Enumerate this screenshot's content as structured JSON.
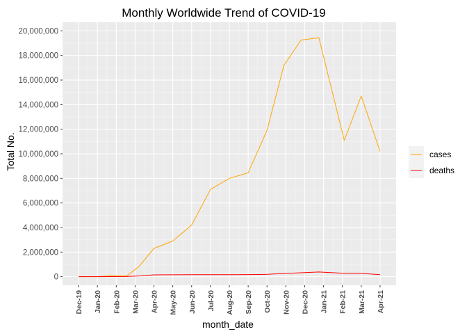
{
  "chart_data": {
    "type": "line",
    "title": "Monthly Worldwide Trend of COVID-19",
    "xlabel": "month_date",
    "ylabel": "Total No.",
    "categories": [
      "Dec-19",
      "Jan-20",
      "Feb-20",
      "Mar-20",
      "Apr-20",
      "May-20",
      "Jun-20",
      "Jul-20",
      "Aug-20",
      "Sep-20",
      "Oct-20",
      "Nov-20",
      "Dec-20",
      "Jan-21",
      "Feb-21",
      "Mar-21",
      "Apr-21"
    ],
    "x_offsets": [
      0,
      1,
      2,
      3,
      4,
      5,
      6,
      7,
      8,
      9,
      10,
      11,
      12,
      13,
      14,
      15,
      16
    ],
    "ylim": [
      -700000,
      20700000
    ],
    "yticks": [
      0,
      2000000,
      4000000,
      6000000,
      8000000,
      10000000,
      12000000,
      14000000,
      16000000,
      18000000,
      20000000
    ],
    "ytick_labels": [
      "0",
      "2,000,000",
      "4,000,000",
      "6,000,000",
      "8,000,000",
      "10,000,000",
      "12,000,000",
      "14,000,000",
      "16,000,000",
      "18,000,000",
      "20,000,000"
    ],
    "grid": true,
    "legend_position": "right",
    "series": [
      {
        "name": "cases",
        "color": "#FFA500",
        "points": [
          [
            0,
            0
          ],
          [
            1,
            10000
          ],
          [
            1.7,
            70000
          ],
          [
            2.55,
            60000
          ],
          [
            3.2,
            820000
          ],
          [
            4.0,
            2300000
          ],
          [
            5.0,
            2900000
          ],
          [
            6.0,
            4200000
          ],
          [
            7.0,
            7100000
          ],
          [
            8.0,
            8000000
          ],
          [
            9.0,
            8450000
          ],
          [
            10.0,
            11900000
          ],
          [
            10.9,
            17200000
          ],
          [
            11.8,
            19250000
          ],
          [
            12.75,
            19450000
          ],
          [
            14.1,
            11100000
          ],
          [
            15.0,
            14700000
          ],
          [
            16.0,
            10200000
          ]
        ]
      },
      {
        "name": "deaths",
        "color": "#FF0000",
        "points": [
          [
            0,
            0
          ],
          [
            1,
            0
          ],
          [
            1.7,
            5000
          ],
          [
            2.55,
            15000
          ],
          [
            3.2,
            60000
          ],
          [
            4.0,
            150000
          ],
          [
            5.0,
            155000
          ],
          [
            6.0,
            160000
          ],
          [
            7.0,
            165000
          ],
          [
            8.0,
            165000
          ],
          [
            9.0,
            170000
          ],
          [
            10.0,
            190000
          ],
          [
            10.9,
            260000
          ],
          [
            11.8,
            320000
          ],
          [
            12.75,
            380000
          ],
          [
            14.1,
            280000
          ],
          [
            15.0,
            270000
          ],
          [
            16.0,
            160000
          ]
        ]
      }
    ]
  }
}
